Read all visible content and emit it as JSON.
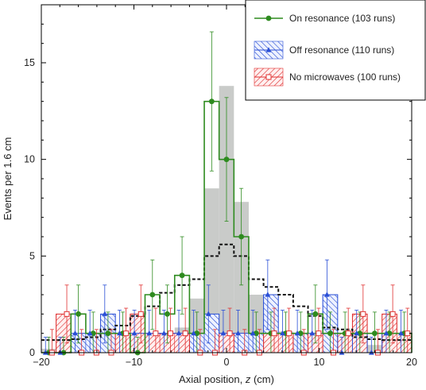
{
  "chart_data": {
    "type": "bar",
    "xlabel_prefix": "Axial position, ",
    "xlabel_var": "z",
    "xlabel_suffix": " (cm)",
    "ylabel": "Events per 1.6 cm",
    "xlim": [
      -20,
      20
    ],
    "ylim": [
      0,
      18
    ],
    "bin_width": 1.6,
    "x_ticks": [
      "-20",
      "-10",
      "0",
      "10",
      "20"
    ],
    "y_ticks": [
      "0",
      "5",
      "10",
      "15"
    ],
    "legend_position": "top-right",
    "bin_centers": [
      -19.2,
      -17.6,
      -16.0,
      -14.4,
      -12.8,
      -11.2,
      -9.6,
      -8.0,
      -6.4,
      -4.8,
      -3.2,
      -1.6,
      0.0,
      1.6,
      3.2,
      4.8,
      6.4,
      8.0,
      9.6,
      11.2,
      12.8,
      14.4,
      16.0,
      17.6,
      19.2
    ],
    "series": [
      {
        "name": "On resonance (103 runs)",
        "color": "#2e8b1f",
        "marker": "circle",
        "values": [
          0,
          0,
          2,
          1,
          1,
          1,
          0,
          3,
          2,
          4,
          1,
          13,
          10,
          6,
          1,
          1,
          1,
          1,
          2,
          1,
          1,
          1,
          1,
          1,
          1
        ],
        "errors": [
          0.8,
          0.8,
          1.5,
          1.1,
          1.1,
          1.1,
          0.8,
          1.8,
          1.5,
          2.0,
          1.1,
          3.6,
          3.2,
          2.5,
          1.1,
          1.1,
          1.1,
          1.1,
          1.5,
          1.1,
          1.1,
          1.1,
          1.1,
          1.1,
          1.1
        ]
      },
      {
        "name": "Off resonance (110 runs)",
        "color": "#2a4fd6",
        "marker": "triangle",
        "values": [
          0,
          0,
          1,
          1,
          2,
          1,
          1,
          1,
          1,
          1,
          1,
          2,
          1,
          1,
          1,
          3,
          1,
          1,
          1,
          3,
          0,
          1,
          0,
          1,
          1
        ],
        "errors": [
          0.8,
          0.8,
          1.2,
          1.2,
          1.5,
          1.2,
          1.2,
          1.2,
          1.2,
          1.2,
          1.2,
          1.5,
          1.2,
          1.2,
          1.2,
          1.8,
          1.2,
          1.2,
          1.2,
          1.8,
          0.8,
          1.2,
          0.8,
          1.2,
          1.2
        ]
      },
      {
        "name": "No microwaves (100 runs)",
        "color": "#e03030",
        "marker": "square",
        "values": [
          0,
          2,
          0,
          0,
          0,
          1,
          2,
          1,
          1,
          1,
          0,
          0,
          1,
          0,
          0,
          1,
          1,
          0,
          1,
          0,
          1,
          2,
          0,
          2,
          1
        ],
        "errors": [
          1.2,
          1.5,
          1.2,
          1.2,
          1.2,
          1.3,
          1.5,
          1.3,
          1.3,
          1.3,
          1.2,
          1.2,
          1.3,
          1.2,
          1.2,
          1.3,
          1.3,
          1.2,
          1.3,
          1.2,
          1.3,
          1.5,
          1.2,
          1.5,
          1.3
        ]
      }
    ],
    "background_histogram": [
      0.2,
      0.3,
      0.3,
      0.3,
      0.4,
      0.4,
      0.5,
      0.6,
      0.8,
      1.3,
      2.8,
      8.5,
      13.8,
      7.8,
      3.0,
      1.6,
      1.1,
      0.9,
      0.7,
      0.6,
      0.5,
      0.5,
      0.4,
      0.3,
      0.2
    ],
    "expected_signal_line": [
      0.65,
      0.65,
      0.7,
      0.8,
      1.2,
      1.4,
      1.9,
      2.4,
      3.1,
      3.5,
      3.8,
      5.0,
      5.6,
      5.0,
      3.8,
      3.4,
      3.0,
      2.4,
      1.9,
      1.3,
      1.2,
      0.8,
      0.7,
      0.65,
      0.65
    ]
  }
}
